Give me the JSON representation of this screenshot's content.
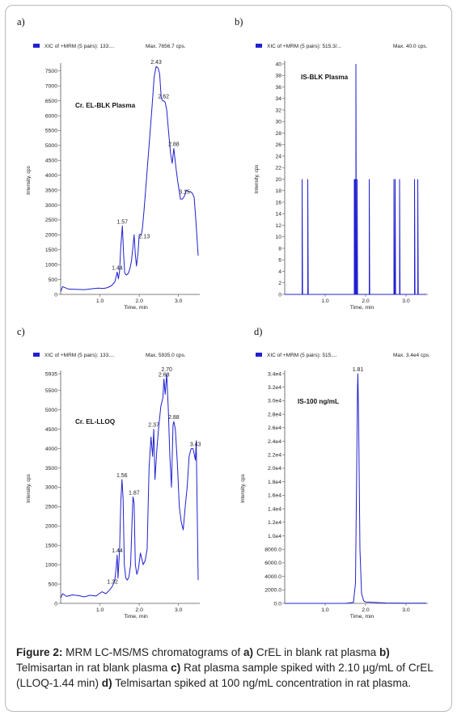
{
  "panels": [
    {
      "letter": "a)",
      "legend": "XIC of +MRM (5 pairs): 133....",
      "max_label": "Max. 7656.7 cps.",
      "annotation": "Cr. EL-BLK Plasma",
      "ylabel": "Intensity, cps",
      "xlabel": "Time, min"
    },
    {
      "letter": "b)",
      "legend": "XIC of +MRM (5 pairs): 515.3/...",
      "max_label": "Max. 40.0 cps.",
      "annotation": "IS-BLK Plasma",
      "ylabel": "Intensity, cps",
      "xlabel": "Time, min"
    },
    {
      "letter": "c)",
      "legend": "XIC of +MRM (5 pairs): 133....",
      "max_label": "Max. 5935.0 cps.",
      "annotation": "Cr. EL-LLOQ",
      "ylabel": "Intensity, cps",
      "xlabel": "Time, min"
    },
    {
      "letter": "d)",
      "legend": "XIC of +MRM (5 pairs): 515....",
      "max_label": "Max. 3.4e4 cps.",
      "annotation": "IS-100 ng/mL",
      "ylabel": "Intensity, cps",
      "xlabel": "Time, min"
    }
  ],
  "caption": {
    "figure_label": "Figure 2:",
    "segments": [
      {
        "text": " MRM LC-MS/MS chromatograms of ",
        "bold": false
      },
      {
        "text": "a)",
        "bold": true
      },
      {
        "text": " CrEL in blank rat plasma ",
        "bold": false
      },
      {
        "text": "b)",
        "bold": true
      },
      {
        "text": " Telmisartan in rat blank plasma ",
        "bold": false
      },
      {
        "text": "c)",
        "bold": true
      },
      {
        "text": " Rat plasma sample spiked with 2.10 µg/mL of CrEL (LLOQ-1.44 min) ",
        "bold": false
      },
      {
        "text": "d)",
        "bold": true
      },
      {
        "text": " Telmisartan spiked at 100 ng/mL concentration in rat plasma.",
        "bold": false
      }
    ]
  },
  "colors": {
    "trace": "#2020d0",
    "axis": "#555555",
    "legend_swatch": "#2020d0"
  },
  "chart_data": [
    {
      "panel": "a)",
      "type": "line",
      "xlim": [
        0,
        3.5
      ],
      "ylim": [
        0,
        7656.7
      ],
      "xticks": [
        1.0,
        2.0,
        3.0
      ],
      "xtick_labels": [
        "1.0",
        "2.0",
        "3.0"
      ],
      "yticks": [
        0,
        500,
        1000,
        1500,
        2000,
        2500,
        3000,
        3500,
        4000,
        4500,
        5000,
        5500,
        6000,
        6500,
        7000,
        7500
      ],
      "ytick_labels": [
        "0",
        "500",
        "1000",
        "1500",
        "2000",
        "2500",
        "3000",
        "3500",
        "4000",
        "4500",
        "5000",
        "5500",
        "6000",
        "6500",
        "7000",
        "7500"
      ],
      "x": [
        0.0,
        0.05,
        0.2,
        0.4,
        0.6,
        0.8,
        0.95,
        1.1,
        1.2,
        1.3,
        1.38,
        1.42,
        1.44,
        1.47,
        1.5,
        1.53,
        1.57,
        1.6,
        1.63,
        1.67,
        1.72,
        1.76,
        1.8,
        1.84,
        1.87,
        1.9,
        1.93,
        1.97,
        2.0,
        2.05,
        2.08,
        2.12,
        2.18,
        2.25,
        2.32,
        2.38,
        2.43,
        2.48,
        2.52,
        2.56,
        2.6,
        2.62,
        2.66,
        2.7,
        2.75,
        2.8,
        2.84,
        2.88,
        2.93,
        2.98,
        3.05,
        3.1,
        3.15,
        3.2,
        3.25,
        3.3,
        3.35,
        3.4,
        3.45,
        3.5
      ],
      "y": [
        100,
        260,
        180,
        170,
        160,
        190,
        210,
        200,
        230,
        300,
        420,
        650,
        750,
        520,
        800,
        1600,
        2300,
        1400,
        720,
        650,
        700,
        850,
        1100,
        1600,
        2000,
        1350,
        950,
        1400,
        2000,
        2000,
        2200,
        2800,
        3800,
        5000,
        6200,
        7300,
        7650,
        7600,
        7400,
        6600,
        6500,
        6500,
        6450,
        6200,
        5400,
        4700,
        4400,
        4900,
        4300,
        3800,
        3200,
        3200,
        3300,
        3500,
        3450,
        3450,
        3400,
        3250,
        2300,
        1300
      ],
      "peak_labels": [
        {
          "x": 1.44,
          "y": 750,
          "text": "1.44"
        },
        {
          "x": 1.57,
          "y": 2300,
          "text": "1.57"
        },
        {
          "x": 2.13,
          "y": 1800,
          "text": "2.13"
        },
        {
          "x": 2.43,
          "y": 7650,
          "text": "2.43"
        },
        {
          "x": 2.62,
          "y": 6500,
          "text": "2.62"
        },
        {
          "x": 2.88,
          "y": 4900,
          "text": "2.88"
        },
        {
          "x": 3.15,
          "y": 3300,
          "text": "3.15"
        }
      ]
    },
    {
      "panel": "b)",
      "type": "line",
      "xlim": [
        0,
        3.5
      ],
      "ylim": [
        0,
        40
      ],
      "xticks": [
        1.0,
        2.0,
        3.0
      ],
      "xtick_labels": [
        "1.0",
        "2.0",
        "3.0"
      ],
      "yticks": [
        0,
        2,
        4,
        6,
        8,
        10,
        12,
        14,
        16,
        18,
        20,
        22,
        24,
        26,
        28,
        30,
        32,
        34,
        36,
        38,
        40
      ],
      "ytick_labels": [
        "0",
        "2",
        "4",
        "6",
        "8",
        "10",
        "12",
        "14",
        "16",
        "18",
        "20",
        "22",
        "24",
        "26",
        "28",
        "30",
        "32",
        "34",
        "36",
        "38",
        "40"
      ],
      "spikes": [
        {
          "x": 0.43,
          "y": 20
        },
        {
          "x": 0.57,
          "y": 20
        },
        {
          "x": 1.72,
          "y": 20
        },
        {
          "x": 1.74,
          "y": 20
        },
        {
          "x": 1.76,
          "y": 40
        },
        {
          "x": 1.79,
          "y": 20
        },
        {
          "x": 2.09,
          "y": 20
        },
        {
          "x": 2.7,
          "y": 20
        },
        {
          "x": 2.73,
          "y": 20
        },
        {
          "x": 2.84,
          "y": 20
        },
        {
          "x": 3.21,
          "y": 20
        },
        {
          "x": 3.29,
          "y": 20
        }
      ],
      "peak_labels": []
    },
    {
      "panel": "c)",
      "type": "line",
      "xlim": [
        0,
        3.5
      ],
      "ylim": [
        0,
        5935
      ],
      "xticks": [
        1.0,
        2.0,
        3.0
      ],
      "xtick_labels": [
        "1.0",
        "2.0",
        "3.0"
      ],
      "yticks": [
        0,
        500,
        1000,
        1500,
        2000,
        2500,
        3000,
        3500,
        4000,
        4500,
        5000,
        5500,
        5935
      ],
      "ytick_labels": [
        "0",
        "500",
        "1000",
        "1500",
        "2000",
        "2500",
        "3000",
        "3500",
        "4000",
        "4500",
        "5000",
        "5500",
        "5935"
      ],
      "x": [
        0.0,
        0.05,
        0.15,
        0.3,
        0.45,
        0.6,
        0.75,
        0.9,
        1.05,
        1.15,
        1.25,
        1.32,
        1.38,
        1.42,
        1.44,
        1.46,
        1.5,
        1.53,
        1.56,
        1.59,
        1.62,
        1.66,
        1.7,
        1.74,
        1.78,
        1.82,
        1.84,
        1.87,
        1.9,
        1.94,
        1.98,
        2.03,
        2.1,
        2.15,
        2.2,
        2.25,
        2.3,
        2.34,
        2.37,
        2.4,
        2.45,
        2.5,
        2.55,
        2.6,
        2.63,
        2.66,
        2.7,
        2.74,
        2.78,
        2.82,
        2.86,
        2.88,
        2.92,
        2.97,
        3.02,
        3.07,
        3.12,
        3.17,
        3.22,
        3.27,
        3.32,
        3.37,
        3.43,
        3.45,
        3.5
      ],
      "y": [
        140,
        250,
        180,
        220,
        200,
        170,
        210,
        190,
        300,
        250,
        350,
        450,
        600,
        1000,
        1250,
        650,
        1400,
        2600,
        3200,
        2700,
        1000,
        650,
        600,
        700,
        1000,
        2200,
        2750,
        2600,
        1000,
        750,
        900,
        1300,
        1000,
        1100,
        1400,
        3500,
        4300,
        3800,
        4500,
        3200,
        4000,
        4600,
        5100,
        5300,
        5800,
        5400,
        5935,
        5000,
        3800,
        3000,
        4600,
        4700,
        4500,
        3600,
        2500,
        2100,
        1900,
        2500,
        3000,
        3800,
        4000,
        4000,
        3700,
        4200,
        600
      ],
      "peak_labels": [
        {
          "x": 1.32,
          "y": 450,
          "text": "1.32"
        },
        {
          "x": 1.44,
          "y": 1250,
          "text": "1.44"
        },
        {
          "x": 1.56,
          "y": 3200,
          "text": "1.56"
        },
        {
          "x": 1.87,
          "y": 2750,
          "text": "1.87"
        },
        {
          "x": 2.37,
          "y": 4500,
          "text": "2.37"
        },
        {
          "x": 2.63,
          "y": 5800,
          "text": "2.63"
        },
        {
          "x": 2.7,
          "y": 5935,
          "text": "2.70"
        },
        {
          "x": 2.88,
          "y": 4700,
          "text": "2.88"
        },
        {
          "x": 3.43,
          "y": 4000,
          "text": "3.43"
        }
      ]
    },
    {
      "panel": "d)",
      "type": "line",
      "xlim": [
        0,
        3.5
      ],
      "ylim": [
        0,
        34000
      ],
      "xticks": [
        1.0,
        2.0,
        3.0
      ],
      "xtick_labels": [
        "1.0",
        "2.0",
        "3.0"
      ],
      "yticks": [
        0,
        2000,
        4000,
        6000,
        8000,
        10000,
        12000,
        14000,
        16000,
        18000,
        20000,
        22000,
        24000,
        26000,
        28000,
        30000,
        32000,
        34000
      ],
      "ytick_labels": [
        "0.0",
        "2000.0",
        "4000.0",
        "6000.0",
        "8000.0",
        "1.0e4",
        "1.2e4",
        "1.4e4",
        "1.6e4",
        "1.8e4",
        "2.0e4",
        "2.2e4",
        "2.4e4",
        "2.6e4",
        "2.8e4",
        "3.0e4",
        "3.2e4",
        "3.4e4"
      ],
      "x": [
        0.0,
        0.5,
        1.0,
        1.5,
        1.7,
        1.75,
        1.78,
        1.8,
        1.81,
        1.83,
        1.86,
        1.9,
        1.95,
        2.0,
        2.2,
        2.5,
        3.0,
        3.5
      ],
      "y": [
        0,
        0,
        0,
        0,
        150,
        3000,
        20000,
        32000,
        34000,
        26000,
        8000,
        1500,
        400,
        200,
        150,
        60,
        30,
        20
      ],
      "peak_labels": [
        {
          "x": 1.81,
          "y": 34000,
          "text": "1.81"
        }
      ]
    }
  ]
}
